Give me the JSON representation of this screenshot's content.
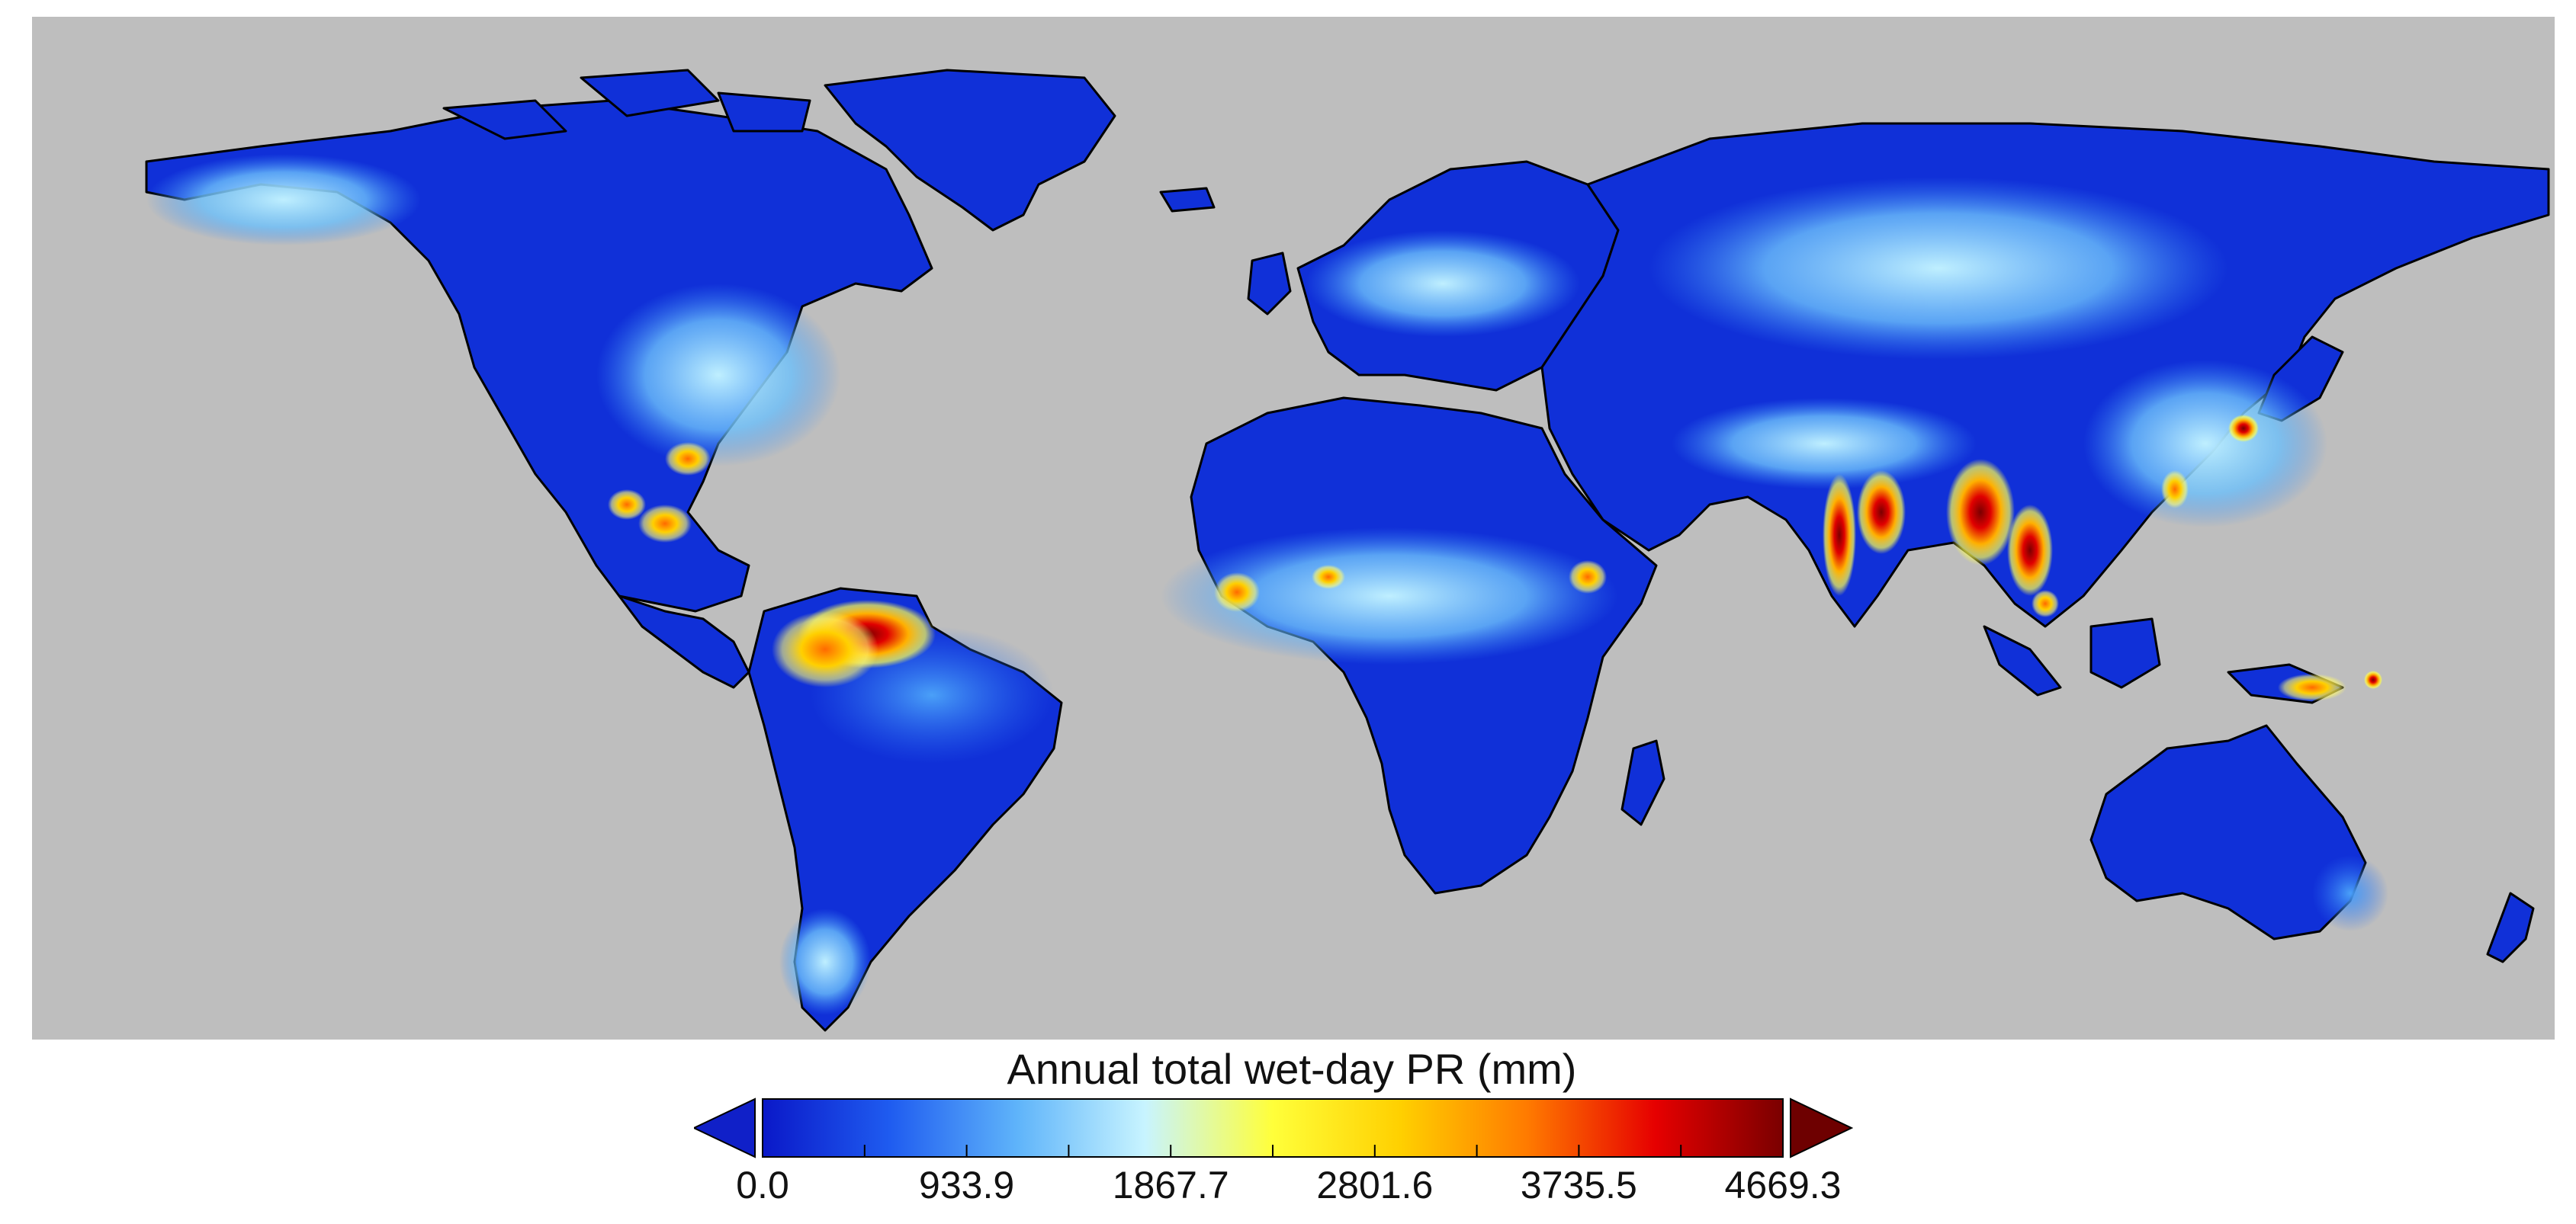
{
  "map": {
    "ocean_color": "#bebebe",
    "land_base_color": "#0a2fd6",
    "coastline_color": "#000000"
  },
  "legend": {
    "title": "Annual total wet-day PR (mm)",
    "min": 0.0,
    "max": 4669.3,
    "ticks": [
      "0.0",
      "933.9",
      "1867.7",
      "2801.6",
      "3735.5",
      "4669.3"
    ],
    "extend": "both",
    "colormap": [
      "#0a18c8",
      "#1f5cf0",
      "#5fb4fa",
      "#c8f4ff",
      "#ffff3a",
      "#ffd000",
      "#ff7a00",
      "#e60000",
      "#7a0000"
    ],
    "low_arrow_color": "#1020c8",
    "high_arrow_color": "#6e0000"
  }
}
